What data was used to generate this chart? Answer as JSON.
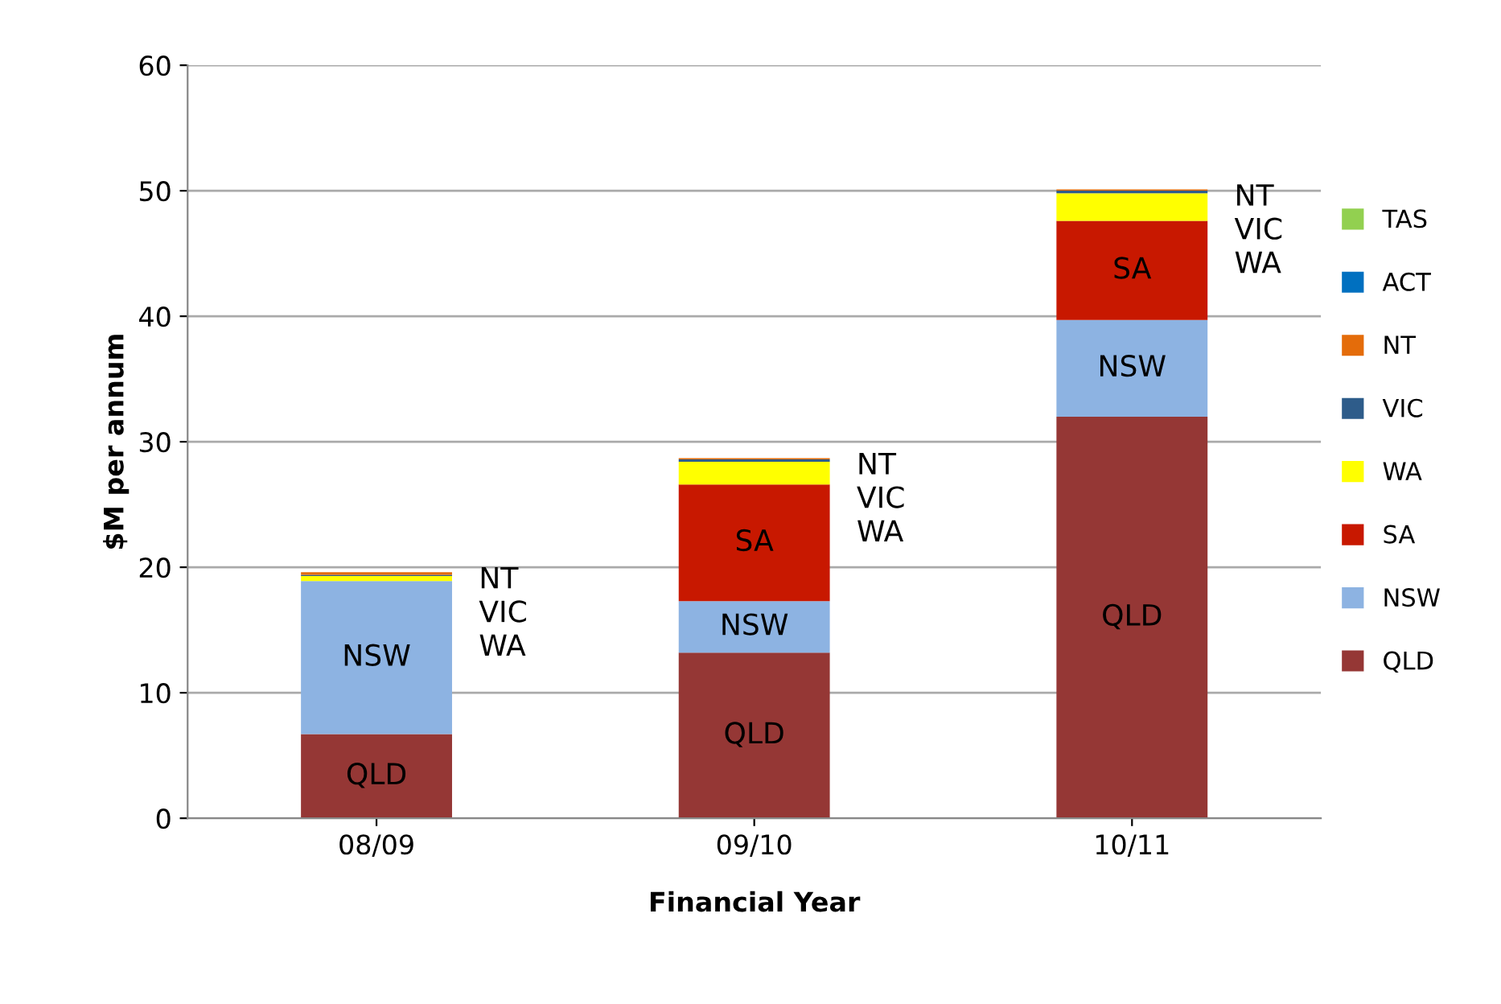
{
  "chart_data": {
    "type": "bar",
    "stacked": true,
    "xlabel": "Financial Year",
    "ylabel": "$M per annum",
    "categories": [
      "08/09",
      "09/10",
      "10/11"
    ],
    "series": [
      {
        "name": "QLD",
        "color": "#953735",
        "values": [
          6.7,
          13.2,
          32.0
        ],
        "value_labels": [
          "QLD",
          "QLD",
          "QLD"
        ]
      },
      {
        "name": "NSW",
        "color": "#8db3e2",
        "values": [
          12.2,
          4.1,
          7.7
        ],
        "value_labels": [
          "NSW",
          "NSW",
          "NSW"
        ]
      },
      {
        "name": "SA",
        "color": "#c81800",
        "values": [
          0,
          9.3,
          7.9
        ],
        "value_labels": [
          null,
          "SA",
          "SA"
        ]
      },
      {
        "name": "WA",
        "color": "#ffff00",
        "values": [
          0.4,
          1.8,
          2.2
        ]
      },
      {
        "name": "VIC",
        "color": "#2e5c8a",
        "values": [
          0.1,
          0.2,
          0.2
        ]
      },
      {
        "name": "NT",
        "color": "#e46c0a",
        "values": [
          0.2,
          0.1,
          0.1
        ]
      },
      {
        "name": "ACT",
        "color": "#0070c0",
        "values": [
          0,
          0,
          0
        ]
      },
      {
        "name": "TAS",
        "color": "#92d050",
        "values": [
          0,
          0,
          0
        ]
      }
    ],
    "ylim": [
      0,
      60
    ],
    "yticks": [
      0,
      10,
      20,
      30,
      40,
      50,
      60
    ],
    "grid": "y",
    "legend": "right",
    "annotations": [
      "NT\nVIC\nWA",
      "NT\nVIC\nWA",
      "NT\nVIC\nWA"
    ]
  }
}
